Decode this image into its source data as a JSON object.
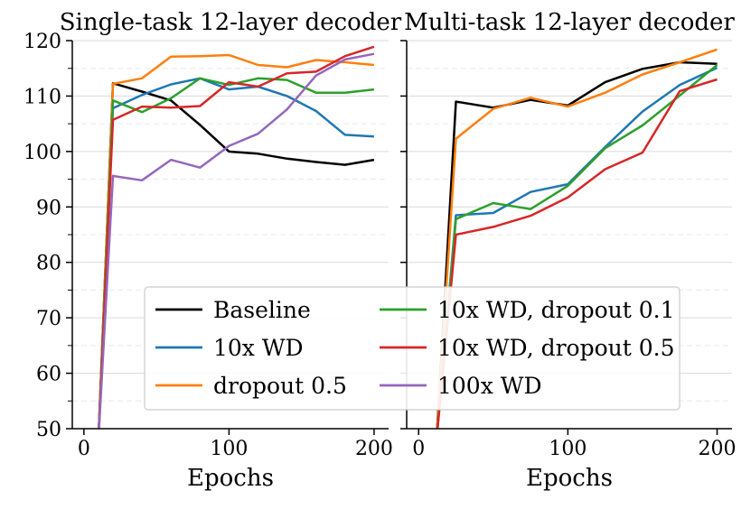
{
  "chart_data": [
    {
      "type": "line",
      "title": "Single-task 12-layer decoder",
      "xlabel": "Epochs",
      "ylabel": "",
      "xlim": [
        -8,
        210
      ],
      "ylim": [
        50,
        120
      ],
      "xticks": [
        0,
        100,
        200
      ],
      "yticks": [
        50,
        60,
        70,
        80,
        90,
        100,
        110,
        120
      ],
      "grid": true,
      "series": [
        {
          "name": "Baseline",
          "color": "#000000",
          "x": [
            10,
            20,
            40,
            60,
            80,
            100,
            120,
            140,
            160,
            180,
            200
          ],
          "y": [
            48,
            112.3,
            110.8,
            109.2,
            104.8,
            100.0,
            99.6,
            98.7,
            98.1,
            97.6,
            98.5
          ]
        },
        {
          "name": "10x WD",
          "color": "#1f77b4",
          "x": [
            10,
            20,
            40,
            60,
            80,
            100,
            120,
            140,
            160,
            180,
            200
          ],
          "y": [
            48,
            107.8,
            110.2,
            112.1,
            113.2,
            111.2,
            111.7,
            110.0,
            107.3,
            103.0,
            102.7
          ]
        },
        {
          "name": "dropout 0.5",
          "color": "#ff7f0e",
          "x": [
            10,
            20,
            40,
            60,
            80,
            100,
            120,
            140,
            160,
            180,
            200
          ],
          "y": [
            48,
            112.2,
            113.2,
            117.1,
            117.2,
            117.4,
            115.6,
            115.2,
            116.5,
            116.1,
            115.6
          ]
        },
        {
          "name": "10x WD, dropout 0.1",
          "color": "#2ca02c",
          "x": [
            10,
            20,
            40,
            60,
            80,
            100,
            120,
            140,
            160,
            180,
            200
          ],
          "y": [
            48,
            109.2,
            107.1,
            109.6,
            113.2,
            112.0,
            113.2,
            112.9,
            110.6,
            110.6,
            111.2
          ]
        },
        {
          "name": "10x WD, dropout 0.5",
          "color": "#d62728",
          "x": [
            10,
            20,
            40,
            60,
            80,
            100,
            120,
            140,
            160,
            180,
            200
          ],
          "y": [
            48,
            105.7,
            108.1,
            107.9,
            108.2,
            112.5,
            111.7,
            114.1,
            114.4,
            117.2,
            118.9
          ]
        },
        {
          "name": "100x WD",
          "color": "#9467bd",
          "x": [
            10,
            20,
            40,
            60,
            80,
            100,
            120,
            140,
            160,
            180,
            200
          ],
          "y": [
            48,
            95.6,
            94.8,
            98.5,
            97.1,
            101.0,
            103.2,
            107.6,
            113.7,
            116.6,
            117.6
          ]
        }
      ]
    },
    {
      "type": "line",
      "title": "Multi-task 12-layer decoder",
      "xlabel": "Epochs",
      "ylabel": "",
      "xlim": [
        -8,
        210
      ],
      "ylim": [
        50,
        120
      ],
      "xticks": [
        0,
        100,
        200
      ],
      "yticks": [
        50,
        60,
        70,
        80,
        90,
        100,
        110,
        120
      ],
      "grid": true,
      "series": [
        {
          "name": "Baseline",
          "color": "#000000",
          "x": [
            12,
            25,
            50,
            75,
            100,
            125,
            150,
            175,
            200
          ],
          "y": [
            48,
            109.0,
            107.9,
            109.3,
            108.3,
            112.5,
            114.9,
            116.1,
            115.8
          ]
        },
        {
          "name": "10x WD",
          "color": "#1f77b4",
          "x": [
            12,
            25,
            50,
            75,
            100,
            125,
            150,
            175,
            200
          ],
          "y": [
            48,
            88.5,
            88.9,
            92.7,
            94.1,
            100.8,
            107.2,
            112.0,
            115.1
          ]
        },
        {
          "name": "dropout 0.5",
          "color": "#ff7f0e",
          "x": [
            12,
            25,
            50,
            75,
            100,
            125,
            150,
            175,
            200
          ],
          "y": [
            48,
            102.3,
            107.7,
            109.7,
            108.1,
            110.6,
            113.9,
            116.1,
            118.4
          ]
        },
        {
          "name": "10x WD, dropout 0.1",
          "color": "#2ca02c",
          "x": [
            12,
            25,
            50,
            75,
            100,
            125,
            150,
            175,
            200
          ],
          "y": [
            48,
            87.8,
            90.7,
            89.6,
            93.8,
            100.6,
            104.7,
            110.1,
            115.6
          ]
        },
        {
          "name": "10x WD, dropout 0.5",
          "color": "#d62728",
          "x": [
            12,
            25,
            50,
            75,
            100,
            125,
            150,
            175,
            200
          ],
          "y": [
            48,
            85.0,
            86.4,
            88.4,
            91.7,
            96.8,
            99.8,
            110.9,
            113.0
          ]
        }
      ]
    }
  ],
  "legend": {
    "placement": "bottom-center",
    "entries": [
      {
        "label": "Baseline",
        "color": "#000000"
      },
      {
        "label": "10x WD",
        "color": "#1f77b4"
      },
      {
        "label": "dropout 0.5",
        "color": "#ff7f0e"
      },
      {
        "label": "10x WD, dropout 0.1",
        "color": "#2ca02c"
      },
      {
        "label": "10x WD, dropout 0.5",
        "color": "#d62728"
      },
      {
        "label": "100x WD",
        "color": "#9467bd"
      }
    ]
  }
}
